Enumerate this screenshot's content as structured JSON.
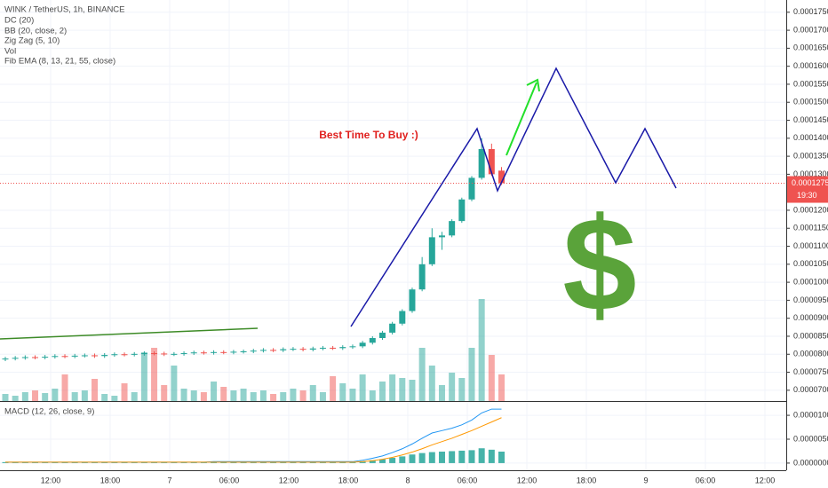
{
  "chart_data": {
    "type": "candlestick",
    "legend": [
      "WINK / TetherUS, 1h, BINANCE",
      "DC (20)",
      "BB (20, close, 2)",
      "Zig Zag (5, 10)",
      "Vol",
      "Fib EMA (8, 13, 21, 55, close)"
    ],
    "annotation": "Best Time To Buy :)",
    "symbol_text": "$",
    "up_color": "#26a69a",
    "down_color": "#ef5350",
    "open": [
      7.86e-05,
      7.88e-05,
      7.9e-05,
      7.92e-05,
      7.91e-05,
      7.93e-05,
      7.95e-05,
      7.94e-05,
      7.96e-05,
      7.97e-05,
      7.95e-05,
      7.98e-05,
      8e-05,
      7.99e-05,
      8.01e-05,
      8.03e-05,
      8.02e-05,
      8e-05,
      8.01e-05,
      8.03e-05,
      8.05e-05,
      8.04e-05,
      8.06e-05,
      8.05e-05,
      8.07e-05,
      8.08e-05,
      8.1e-05,
      8.12e-05,
      8.11e-05,
      8.14e-05,
      8.15e-05,
      8.13e-05,
      8.16e-05,
      8.18e-05,
      8.17e-05,
      8.2e-05,
      8.22e-05,
      8.32e-05,
      8.45e-05,
      8.6e-05,
      8.85e-05,
      9.2e-05,
      9.8e-05,
      0.000105,
      0.0001125,
      0.000113,
      0.000117,
      0.000123,
      0.000129,
      0.000137,
      0.000131
    ],
    "high": [
      7.93e-05,
      7.95e-05,
      7.97e-05,
      7.97e-05,
      7.98e-05,
      8e-05,
      8e-05,
      8.01e-05,
      8.02e-05,
      8.02e-05,
      8.03e-05,
      8.05e-05,
      8.05e-05,
      8.06e-05,
      8.08e-05,
      8.08e-05,
      8.07e-05,
      8.06e-05,
      8.08e-05,
      8.1e-05,
      8.1e-05,
      8.11e-05,
      8.11e-05,
      8.12e-05,
      8.13e-05,
      8.15e-05,
      8.17e-05,
      8.17e-05,
      8.19e-05,
      8.2e-05,
      8.2e-05,
      8.21e-05,
      8.23e-05,
      8.23e-05,
      8.25e-05,
      8.27e-05,
      8.37e-05,
      8.5e-05,
      8.65e-05,
      8.9e-05,
      9.25e-05,
      9.85e-05,
      0.000107,
      0.000115,
      0.000114,
      0.0001175,
      0.0001235,
      0.0001295,
      0.00014,
      0.0001385,
      0.000132
    ],
    "low": [
      7.81e-05,
      7.83e-05,
      7.85e-05,
      7.86e-05,
      7.86e-05,
      7.88e-05,
      7.89e-05,
      7.89e-05,
      7.91e-05,
      7.9e-05,
      7.9e-05,
      7.93e-05,
      7.94e-05,
      7.94e-05,
      7.96e-05,
      7.97e-05,
      7.95e-05,
      7.95e-05,
      7.96e-05,
      7.98e-05,
      7.99e-05,
      7.99e-05,
      8e-05,
      8e-05,
      8.02e-05,
      8.03e-05,
      8.05e-05,
      8.06e-05,
      8.06e-05,
      8.09e-05,
      8.08e-05,
      8.08e-05,
      8.11e-05,
      8.12e-05,
      8.12e-05,
      8.15e-05,
      8.17e-05,
      8.27e-05,
      8.4e-05,
      8.55e-05,
      8.8e-05,
      9.15e-05,
      9.75e-05,
      0.0001045,
      0.000109,
      0.0001125,
      0.0001165,
      0.0001225,
      0.0001285,
      0.0001295,
      0.000127
    ],
    "close": [
      7.88e-05,
      7.9e-05,
      7.92e-05,
      7.91e-05,
      7.93e-05,
      7.95e-05,
      7.94e-05,
      7.96e-05,
      7.97e-05,
      7.95e-05,
      7.98e-05,
      8e-05,
      7.99e-05,
      8.01e-05,
      8.03e-05,
      8.02e-05,
      8e-05,
      8.01e-05,
      8.03e-05,
      8.05e-05,
      8.04e-05,
      8.06e-05,
      8.05e-05,
      8.07e-05,
      8.08e-05,
      8.1e-05,
      8.12e-05,
      8.11e-05,
      8.14e-05,
      8.15e-05,
      8.13e-05,
      8.16e-05,
      8.18e-05,
      8.17e-05,
      8.2e-05,
      8.22e-05,
      8.32e-05,
      8.45e-05,
      8.6e-05,
      8.85e-05,
      9.2e-05,
      9.8e-05,
      0.000105,
      0.0001125,
      0.000113,
      0.000117,
      0.000123,
      0.000129,
      0.000137,
      0.00013,
      0.0001275
    ],
    "volume": [
      8,
      6,
      10,
      12,
      9,
      14,
      30,
      10,
      12,
      25,
      8,
      6,
      20,
      10,
      55,
      60,
      18,
      40,
      14,
      12,
      10,
      22,
      16,
      12,
      14,
      10,
      12,
      8,
      10,
      14,
      12,
      18,
      10,
      28,
      20,
      14,
      30,
      12,
      22,
      30,
      26,
      24,
      60,
      40,
      18,
      32,
      26,
      60,
      115,
      52,
      30
    ],
    "ylim": [
      6.7e-05,
      0.0001784
    ],
    "yticks": [
      {
        "value": 0.000175,
        "label": "0.0001750"
      },
      {
        "value": 0.00017,
        "label": "0.0001700"
      },
      {
        "value": 0.000165,
        "label": "0.0001650"
      },
      {
        "value": 0.00016,
        "label": "0.0001600"
      },
      {
        "value": 0.000155,
        "label": "0.0001550"
      },
      {
        "value": 0.00015,
        "label": "0.0001500"
      },
      {
        "value": 0.000145,
        "label": "0.0001450"
      },
      {
        "value": 0.00014,
        "label": "0.0001400"
      },
      {
        "value": 0.000135,
        "label": "0.0001350"
      },
      {
        "value": 0.00013,
        "label": "0.0001300"
      },
      {
        "value": 0.00012,
        "label": "0.0001200"
      },
      {
        "value": 0.000115,
        "label": "0.0001150"
      },
      {
        "value": 0.00011,
        "label": "0.0001100"
      },
      {
        "value": 0.000105,
        "label": "0.0001050"
      },
      {
        "value": 0.0001,
        "label": "0.0001000"
      },
      {
        "value": 9.5e-05,
        "label": "0.0000950"
      },
      {
        "value": 9e-05,
        "label": "0.0000900"
      },
      {
        "value": 8.5e-05,
        "label": "0.0000850"
      },
      {
        "value": 8e-05,
        "label": "0.0000800"
      },
      {
        "value": 7.5e-05,
        "label": "0.0000750"
      },
      {
        "value": 7e-05,
        "label": "0.0000700"
      }
    ],
    "last_price": {
      "value": 0.0001275,
      "label": "0.0001275"
    },
    "countdown": "19:30",
    "time_labels": [
      "12:00",
      "18:00",
      "7",
      "06:00",
      "12:00",
      "18:00",
      "8",
      "06:00",
      "12:00",
      "18:00",
      "9",
      "06:00",
      "12:00"
    ],
    "grid": true,
    "macd": {
      "label": "MACD (12, 26, close, 9)",
      "histogram": [
        2e-07,
        2e-07,
        2e-07,
        2e-07,
        2e-07,
        2e-07,
        2e-07,
        2e-07,
        2e-07,
        2e-07,
        2e-07,
        2e-07,
        2e-07,
        2e-07,
        2e-07,
        2e-07,
        2e-07,
        2e-07,
        2e-07,
        2e-07,
        2e-07,
        2e-07,
        2e-07,
        2e-07,
        2e-07,
        2e-07,
        2e-07,
        2e-07,
        2e-07,
        2e-07,
        2e-07,
        2e-07,
        2e-07,
        2e-07,
        2e-07,
        2e-07,
        4e-07,
        6e-07,
        8e-07,
        1.1e-06,
        1.4e-06,
        1.8e-06,
        2.1e-06,
        2.3e-06,
        2.4e-06,
        2.5e-06,
        2.6e-06,
        2.7e-06,
        3.1e-06,
        2.8e-06,
        2.4e-06
      ],
      "macd_line": [
        2e-07,
        2e-07,
        2e-07,
        2e-07,
        2e-07,
        2e-07,
        2e-07,
        2e-07,
        2e-07,
        2e-07,
        2e-07,
        2e-07,
        2e-07,
        2e-07,
        2e-07,
        2e-07,
        2e-07,
        2e-07,
        2e-07,
        2e-07,
        2e-07,
        3e-07,
        3e-07,
        3e-07,
        3e-07,
        3e-07,
        3e-07,
        3e-07,
        3e-07,
        3e-07,
        3e-07,
        3e-07,
        3e-07,
        3e-07,
        3e-07,
        3e-07,
        6e-07,
        1e-06,
        1.5e-06,
        2.2e-06,
        3e-06,
        4e-06,
        5.2e-06,
        6.3e-06,
        6.8e-06,
        7.3e-06,
        8e-06,
        9e-06,
        1.05e-05,
        1.13e-05,
        1.13e-05
      ],
      "signal_line": [
        2e-07,
        2e-07,
        2e-07,
        2e-07,
        2e-07,
        2e-07,
        2e-07,
        2e-07,
        2e-07,
        2e-07,
        2e-07,
        2e-07,
        2e-07,
        2e-07,
        2e-07,
        2e-07,
        2e-07,
        2e-07,
        2e-07,
        2e-07,
        2e-07,
        2e-07,
        2e-07,
        2e-07,
        2e-07,
        2e-07,
        2e-07,
        2e-07,
        2e-07,
        2e-07,
        2e-07,
        2e-07,
        2e-07,
        2e-07,
        2e-07,
        2e-07,
        3e-07,
        5e-07,
        8e-07,
        1.2e-06,
        1.7e-06,
        2.3e-06,
        3e-06,
        3.8e-06,
        4.5e-06,
        5.2e-06,
        6e-06,
        6.8e-06,
        7.7e-06,
        8.6e-06,
        9.5e-06
      ],
      "macd_color": "#2196f3",
      "signal_color": "#ff9800",
      "hist_color": "#26a69a",
      "y2lim": [
        -1.5e-06,
        1.28e-05
      ],
      "y2ticks": [
        {
          "value": 1e-05,
          "label": "0.0000100"
        },
        {
          "value": 5e-06,
          "label": "0.0000050"
        },
        {
          "value": 0,
          "label": "0.0000000"
        }
      ]
    }
  }
}
